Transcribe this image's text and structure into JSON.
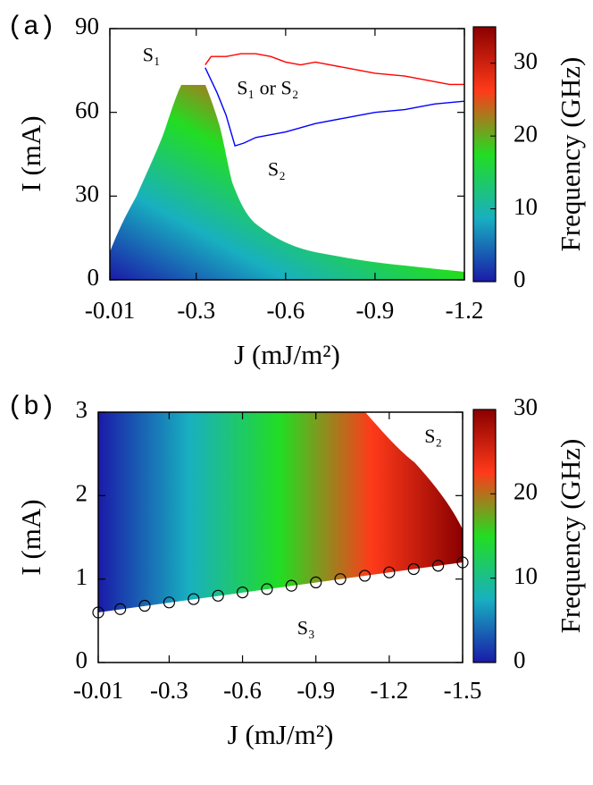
{
  "chart_data": [
    {
      "type": "heatmap",
      "panel_label": "(a)",
      "x_label": "J (mJ/m²)",
      "y_label": "I (mA)",
      "xlim": [
        -0.01,
        -1.2
      ],
      "xticks": [
        -0.01,
        -0.3,
        -0.6,
        -0.9,
        -1.2
      ],
      "ylim": [
        0,
        90
      ],
      "yticks": [
        0,
        30,
        60,
        90
      ],
      "colorbar": {
        "label": "Frequency (GHz)",
        "lim": [
          0,
          35
        ],
        "ticks": [
          0,
          10,
          20,
          30
        ]
      },
      "colormap": [
        "#1a1aa8",
        "#18b0c0",
        "#22dd22",
        "#ff3a1a",
        "#8a0000"
      ],
      "annotations": [
        {
          "text": "S₁",
          "x": -0.15,
          "y": 80
        },
        {
          "text": "S₁ or S₂",
          "x": -0.54,
          "y": 68
        },
        {
          "text": "S₂",
          "x": -0.57,
          "y": 39
        }
      ],
      "series": [
        {
          "type": "line",
          "color": "#ff0000",
          "x": [
            -0.33,
            -0.35,
            -0.4,
            -0.45,
            -0.5,
            -0.55,
            -0.6,
            -0.65,
            -0.7,
            -0.8,
            -0.9,
            -1.0,
            -1.1,
            -1.15,
            -1.2
          ],
          "values": [
            77,
            80,
            80,
            81,
            81,
            80,
            78,
            77,
            78,
            76,
            74,
            73,
            71,
            70,
            70
          ]
        },
        {
          "type": "line",
          "color": "#0000ff",
          "x": [
            -0.33,
            -0.37,
            -0.4,
            -0.43,
            -0.46,
            -0.5,
            -0.6,
            -0.7,
            -0.8,
            -0.9,
            -1.0,
            -1.1,
            -1.2
          ],
          "values": [
            76,
            67,
            59,
            48,
            49,
            51,
            53,
            56,
            58,
            60,
            61,
            63,
            64
          ]
        }
      ]
    },
    {
      "type": "heatmap",
      "panel_label": "(b)",
      "x_label": "J (mJ/m²)",
      "y_label": "I (mA)",
      "xlim": [
        -0.01,
        -1.5
      ],
      "xticks": [
        -0.01,
        -0.3,
        -0.6,
        -0.9,
        -1.2,
        -1.5
      ],
      "ylim": [
        0,
        3
      ],
      "yticks": [
        0,
        1,
        2,
        3
      ],
      "colorbar": {
        "label": "Frequency (GHz)",
        "lim": [
          0,
          30
        ],
        "ticks": [
          0,
          10,
          20,
          30
        ]
      },
      "colormap": [
        "#1a1aa8",
        "#18b0c0",
        "#22dd22",
        "#ff3a1a",
        "#8a0000"
      ],
      "annotations": [
        {
          "text": "S₂",
          "x": -1.38,
          "y": 2.69
        },
        {
          "text": "S₃",
          "x": -0.86,
          "y": 0.39
        }
      ],
      "series": [
        {
          "type": "scatter",
          "color": "#000000",
          "x": [
            -0.01,
            -0.1,
            -0.2,
            -0.3,
            -0.4,
            -0.5,
            -0.6,
            -0.7,
            -0.8,
            -0.9,
            -1.0,
            -1.1,
            -1.2,
            -1.3,
            -1.4,
            -1.5
          ],
          "values": [
            0.6,
            0.64,
            0.68,
            0.72,
            0.76,
            0.8,
            0.84,
            0.88,
            0.92,
            0.96,
            1.0,
            1.04,
            1.08,
            1.12,
            1.16,
            1.2
          ]
        }
      ]
    }
  ]
}
